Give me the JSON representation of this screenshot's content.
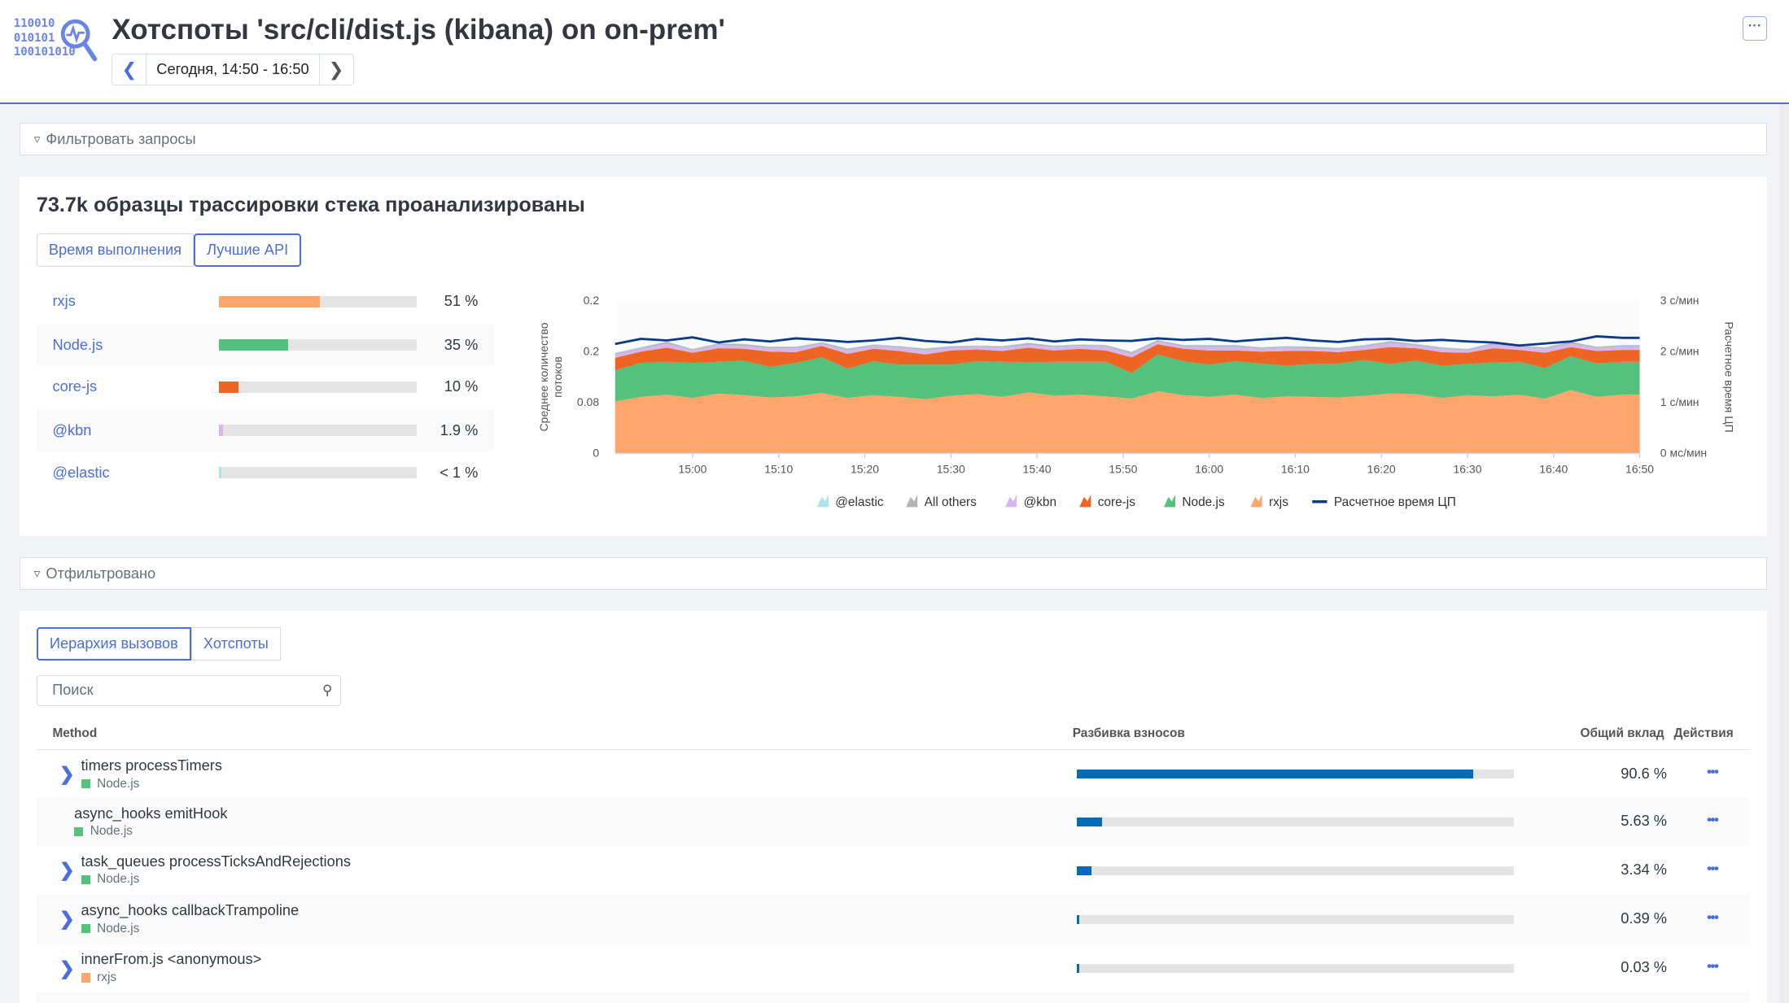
{
  "header": {
    "logo_bits": [
      "110010",
      "010101",
      "100101010"
    ],
    "title": "Хотспоты 'src/cli/dist.js (kibana) on on-prem'",
    "date_range": "Сегодня, 14:50 - 16:50",
    "more_label": "···"
  },
  "filter_queries": {
    "placeholder": "Фильтровать запросы"
  },
  "summary": {
    "title": "73.7k образцы трассировки стека проанализированы",
    "tabs": [
      {
        "label": "Время выполнения",
        "selected": false
      },
      {
        "label": "Лучшие API",
        "selected": true
      }
    ],
    "apis": [
      {
        "name": "rxjs",
        "pct_label": "51 %",
        "fraction": 0.51,
        "color": "#fda66b"
      },
      {
        "name": "Node.js",
        "pct_label": "35 %",
        "fraction": 0.35,
        "color": "#54c17c"
      },
      {
        "name": "core-js",
        "pct_label": "10 %",
        "fraction": 0.1,
        "color": "#ee6422"
      },
      {
        "name": "@kbn",
        "pct_label": "1.9 %",
        "fraction": 0.019,
        "color": "#d9b5ef"
      },
      {
        "name": "@elastic",
        "pct_label": "< 1 %",
        "fraction": 0.005,
        "color": "#aae4ec"
      }
    ]
  },
  "chart_data": {
    "type": "area",
    "stacked": true,
    "ylabel": "Среднее количество потоков",
    "y2label": "Расчетное время ЦП",
    "ylim": [
      0,
      0.27
    ],
    "y_tick_labels": [
      "0",
      "0.08",
      "0.2",
      "0.2"
    ],
    "y2lim": [
      0,
      3
    ],
    "y2_tick_labels": [
      "0 мс/мин",
      "1 с/мин",
      "2 с/мин",
      "3 с/мин"
    ],
    "x_tick_labels": [
      "15:00",
      "15:10",
      "15:20",
      "15:30",
      "15:40",
      "15:50",
      "16:00",
      "16:10",
      "16:20",
      "16:30",
      "16:40",
      "16:50"
    ],
    "x": [
      "14:51",
      "14:54",
      "14:57",
      "15:00",
      "15:03",
      "15:06",
      "15:09",
      "15:12",
      "15:15",
      "15:18",
      "15:21",
      "15:24",
      "15:27",
      "15:30",
      "15:33",
      "15:36",
      "15:39",
      "15:42",
      "15:45",
      "15:48",
      "15:51",
      "15:54",
      "15:57",
      "16:00",
      "16:03",
      "16:06",
      "16:09",
      "16:12",
      "16:15",
      "16:18",
      "16:21",
      "16:24",
      "16:27",
      "16:30",
      "16:33",
      "16:36",
      "16:39",
      "16:42",
      "16:45",
      "16:48"
    ],
    "grid": false,
    "legend_position": "bottom",
    "series": [
      {
        "name": "rxjs",
        "color": "#fda66b",
        "values": [
          0.092,
          0.1,
          0.104,
          0.098,
          0.106,
          0.103,
          0.099,
          0.101,
          0.107,
          0.098,
          0.103,
          0.1,
          0.096,
          0.102,
          0.105,
          0.1,
          0.108,
          0.102,
          0.104,
          0.101,
          0.097,
          0.11,
          0.103,
          0.1,
          0.104,
          0.098,
          0.101,
          0.1,
          0.099,
          0.102,
          0.106,
          0.105,
          0.098,
          0.103,
          0.101,
          0.104,
          0.097,
          0.112,
          0.1,
          0.104
        ]
      },
      {
        "name": "Node.js",
        "color": "#54c17c",
        "values": [
          0.055,
          0.06,
          0.058,
          0.062,
          0.056,
          0.061,
          0.054,
          0.059,
          0.063,
          0.052,
          0.06,
          0.057,
          0.061,
          0.055,
          0.058,
          0.062,
          0.053,
          0.06,
          0.058,
          0.061,
          0.045,
          0.065,
          0.06,
          0.057,
          0.059,
          0.061,
          0.054,
          0.058,
          0.06,
          0.063,
          0.052,
          0.059,
          0.057,
          0.055,
          0.06,
          0.058,
          0.054,
          0.06,
          0.059,
          0.058
        ]
      },
      {
        "name": "core-js",
        "color": "#ee6422",
        "values": [
          0.022,
          0.02,
          0.025,
          0.018,
          0.024,
          0.021,
          0.027,
          0.019,
          0.02,
          0.026,
          0.022,
          0.024,
          0.018,
          0.025,
          0.021,
          0.019,
          0.026,
          0.02,
          0.023,
          0.02,
          0.028,
          0.018,
          0.022,
          0.025,
          0.019,
          0.021,
          0.026,
          0.023,
          0.02,
          0.018,
          0.03,
          0.022,
          0.024,
          0.02,
          0.025,
          0.021,
          0.027,
          0.016,
          0.022,
          0.021
        ]
      },
      {
        "name": "@kbn",
        "color": "#d9b5ef",
        "values": [
          0.006,
          0.005,
          0.007,
          0.004,
          0.006,
          0.005,
          0.006,
          0.007,
          0.004,
          0.006,
          0.005,
          0.006,
          0.007,
          0.005,
          0.004,
          0.006,
          0.005,
          0.006,
          0.005,
          0.007,
          0.006,
          0.005,
          0.004,
          0.006,
          0.007,
          0.005,
          0.006,
          0.004,
          0.005,
          0.006,
          0.007,
          0.005,
          0.006,
          0.004,
          0.006,
          0.005,
          0.007,
          0.006,
          0.005,
          0.006
        ]
      },
      {
        "name": "All others",
        "color": "#b5b5b5",
        "values": [
          0.002,
          0.002,
          0.003,
          0.002,
          0.002,
          0.003,
          0.002,
          0.002,
          0.002,
          0.003,
          0.002,
          0.002,
          0.003,
          0.002,
          0.002,
          0.002,
          0.003,
          0.002,
          0.002,
          0.002,
          0.003,
          0.002,
          0.002,
          0.003,
          0.002,
          0.002,
          0.002,
          0.003,
          0.002,
          0.002,
          0.003,
          0.002,
          0.002,
          0.002,
          0.003,
          0.002,
          0.002,
          0.003,
          0.002,
          0.002
        ]
      },
      {
        "name": "@elastic",
        "color": "#aae4ec",
        "values": [
          0.001,
          0.001,
          0.001,
          0.001,
          0.001,
          0.001,
          0.001,
          0.001,
          0.001,
          0.001,
          0.001,
          0.001,
          0.001,
          0.001,
          0.001,
          0.001,
          0.001,
          0.001,
          0.001,
          0.001,
          0.001,
          0.001,
          0.001,
          0.001,
          0.001,
          0.001,
          0.001,
          0.001,
          0.001,
          0.001,
          0.001,
          0.001,
          0.001,
          0.001,
          0.001,
          0.001,
          0.001,
          0.001,
          0.001,
          0.001
        ]
      }
    ],
    "line_series": {
      "name": "Расчетное время ЦП",
      "axis": "right",
      "color": "#0b3a87",
      "values": [
        2.15,
        2.25,
        2.22,
        2.28,
        2.18,
        2.24,
        2.2,
        2.26,
        2.23,
        2.19,
        2.22,
        2.27,
        2.21,
        2.18,
        2.25,
        2.22,
        2.26,
        2.2,
        2.24,
        2.22,
        2.21,
        2.26,
        2.23,
        2.25,
        2.2,
        2.24,
        2.27,
        2.22,
        2.19,
        2.24,
        2.25,
        2.21,
        2.23,
        2.2,
        2.18,
        2.12,
        2.16,
        2.2,
        2.3,
        2.27
      ]
    },
    "legend": [
      "@elastic",
      "All others",
      "@kbn",
      "core-js",
      "Node.js",
      "rxjs",
      "Расчетное время ЦП"
    ]
  },
  "filtered": {
    "label": "Отфильтровано"
  },
  "calls": {
    "tabs": [
      {
        "label": "Иерархия вызовов",
        "selected": true
      },
      {
        "label": "Хотспоты",
        "selected": false
      }
    ],
    "search_placeholder": "Поиск",
    "columns": {
      "method": "Method",
      "breakdown": "Разбивка взносов",
      "total": "Общий вклад",
      "actions": "Действия"
    },
    "rows": [
      {
        "method": "timers processTimers",
        "lib": "Node.js",
        "lib_color": "#54c17c",
        "pct_label": "90.6 %",
        "fraction": 0.906,
        "expandable": true
      },
      {
        "method": "async_hooks emitHook",
        "lib": "Node.js",
        "lib_color": "#54c17c",
        "pct_label": "5.63 %",
        "fraction": 0.0563,
        "expandable": false
      },
      {
        "method": "task_queues processTicksAndRejections",
        "lib": "Node.js",
        "lib_color": "#54c17c",
        "pct_label": "3.34 %",
        "fraction": 0.0334,
        "expandable": true
      },
      {
        "method": "async_hooks callbackTrampoline",
        "lib": "Node.js",
        "lib_color": "#54c17c",
        "pct_label": "0.39 %",
        "fraction": 0.0039,
        "expandable": true
      },
      {
        "method": "innerFrom.js <anonymous>",
        "lib": "rxjs",
        "lib_color": "#fda66b",
        "pct_label": "0.03 %",
        "fraction": 0.0003,
        "expandable": true
      }
    ]
  }
}
